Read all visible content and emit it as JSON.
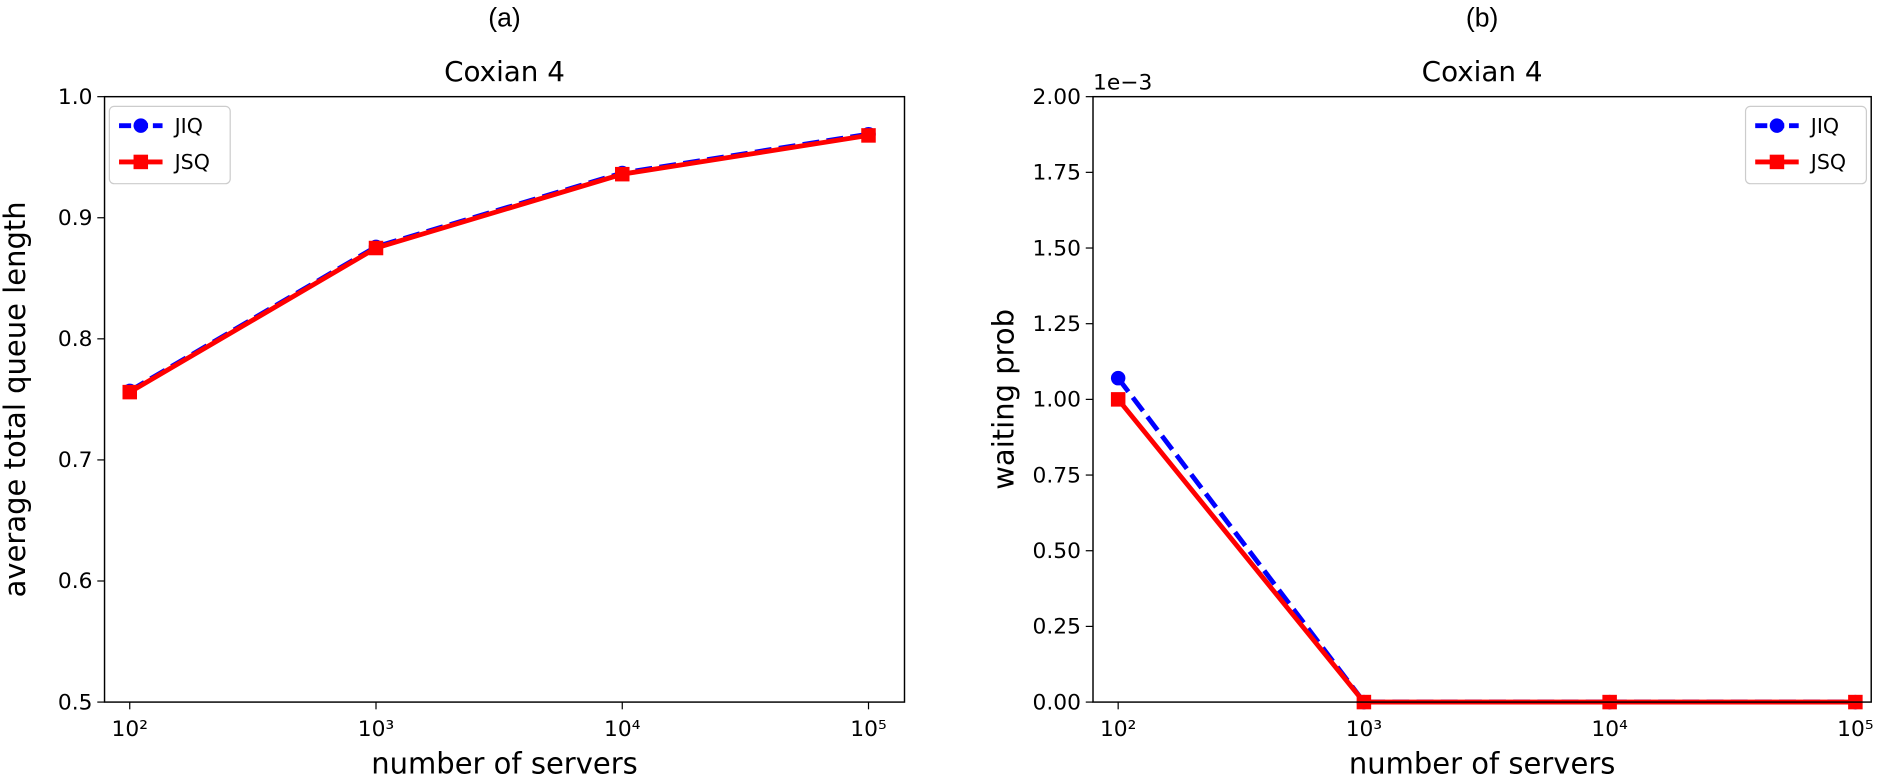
{
  "chart_data": [
    {
      "type": "line",
      "label": "(a)",
      "title": "Coxian 4",
      "xlabel": "number of servers",
      "ylabel": "average total queue length",
      "x": [
        100,
        1000,
        10000,
        100000
      ],
      "xlog": true,
      "xlim": [
        79,
        140000
      ],
      "xticks": [
        {
          "value": 100,
          "label": "10²"
        },
        {
          "value": 1000,
          "label": "10³"
        },
        {
          "value": 10000,
          "label": "10⁴"
        },
        {
          "value": 100000,
          "label": "10⁵"
        }
      ],
      "ylim": [
        0.5,
        1.0
      ],
      "yticks": [
        0.5,
        0.6,
        0.7,
        0.8,
        0.9,
        {
          "value": 1.0,
          "label": "1.0"
        }
      ],
      "legend": "upper left",
      "series": [
        {
          "name": "JIQ",
          "color": "#0000ff",
          "dash": true,
          "marker": "circle",
          "values": [
            0.757,
            0.876,
            0.937,
            0.969
          ]
        },
        {
          "name": "JSQ",
          "color": "#ff0000",
          "dash": false,
          "marker": "square",
          "values": [
            0.756,
            0.875,
            0.936,
            0.968
          ]
        }
      ]
    },
    {
      "type": "line",
      "label": "(b)",
      "title": "Coxian 4",
      "xlabel": "number of servers",
      "ylabel": "waiting prob",
      "y_offset_label": "1e−3",
      "x": [
        100,
        1000,
        10000,
        100000
      ],
      "xlog": true,
      "xlim": [
        79,
        116000
      ],
      "xticks": [
        {
          "value": 100,
          "label": "10²"
        },
        {
          "value": 1000,
          "label": "10³"
        },
        {
          "value": 10000,
          "label": "10⁴"
        },
        {
          "value": 100000,
          "label": "10⁵"
        }
      ],
      "ylim": [
        0,
        2.0
      ],
      "yticks": [
        {
          "value": 0,
          "label": "0.00"
        },
        0.25,
        {
          "value": 0.5,
          "label": "0.50"
        },
        0.75,
        {
          "value": 1.0,
          "label": "1.00"
        },
        1.25,
        {
          "value": 1.5,
          "label": "1.50"
        },
        1.75,
        {
          "value": 2.0,
          "label": "2.00"
        }
      ],
      "legend": "upper right",
      "series": [
        {
          "name": "JIQ",
          "color": "#0000ff",
          "dash": true,
          "marker": "circle",
          "values": [
            1.07,
            0,
            0,
            0
          ]
        },
        {
          "name": "JSQ",
          "color": "#ff0000",
          "dash": false,
          "marker": "square",
          "values": [
            1.0,
            0,
            0,
            0
          ]
        }
      ]
    }
  ]
}
